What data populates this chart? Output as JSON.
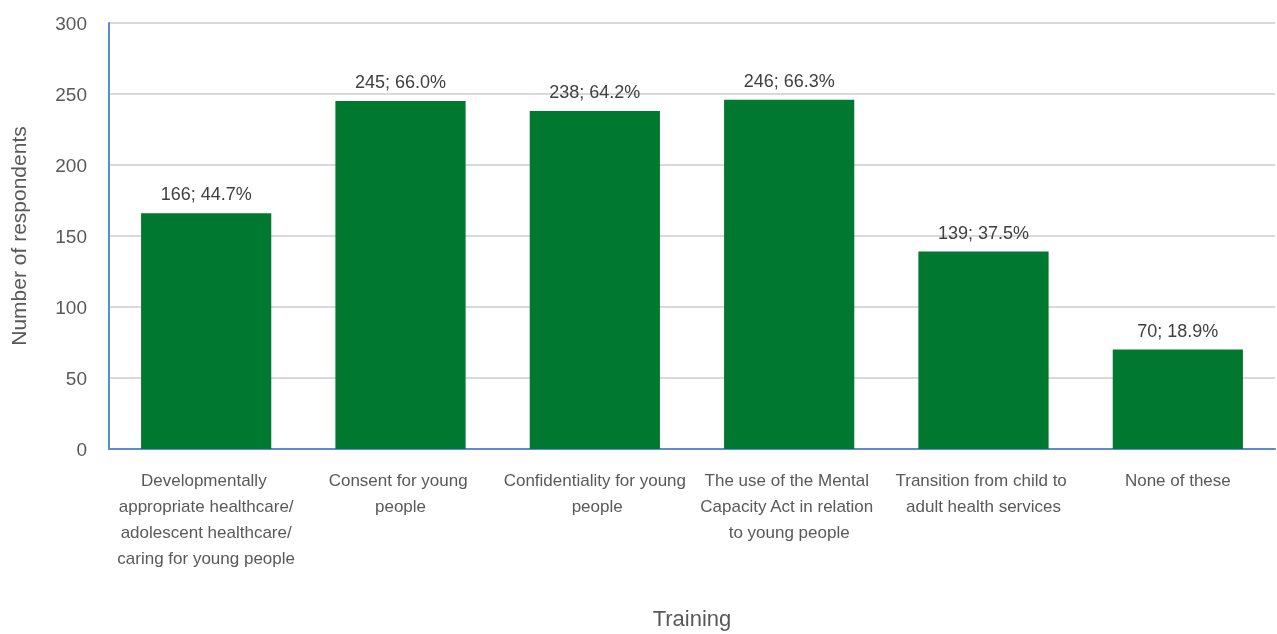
{
  "chart_data": {
    "type": "bar",
    "xlabel": "Training",
    "ylabel": "Number of respondents",
    "categories": [
      "Developmentally appropriate healthcare/adolescent healthcare/caring for young people",
      "Consent for young people",
      "Confidentiality for young people",
      "The use of the Mental Capacity Act in relation to young people",
      "Transition from child to adult health services",
      "None of these"
    ],
    "values": [
      166,
      245,
      238,
      246,
      139,
      70
    ],
    "value_labels": [
      "166; 44.7%",
      "245; 66.0%",
      "238; 64.2%",
      "246; 66.3%",
      "139; 37.5%",
      "70; 18.9%"
    ],
    "color": "#00782f",
    "ylim": [
      0,
      300
    ],
    "yticks": [
      0,
      50,
      100,
      150,
      200,
      250,
      300
    ],
    "grid": "y"
  }
}
